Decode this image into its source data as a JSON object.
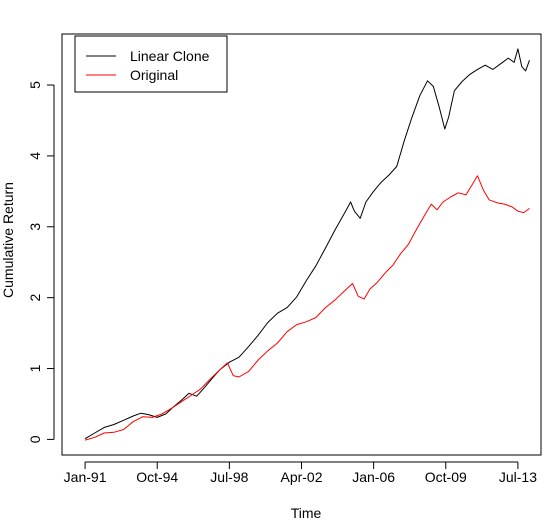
{
  "chart_data": {
    "type": "line",
    "title": "",
    "xlabel": "Time",
    "ylabel": "Cumulative Return",
    "x_ticks": [
      {
        "label": "Jan-91",
        "t": 1991.0
      },
      {
        "label": "Oct-94",
        "t": 1994.75
      },
      {
        "label": "Jul-98",
        "t": 1998.5
      },
      {
        "label": "Apr-02",
        "t": 2002.25
      },
      {
        "label": "Jan-06",
        "t": 2006.0
      },
      {
        "label": "Oct-09",
        "t": 2009.75
      },
      {
        "label": "Jul-13",
        "t": 2013.5
      }
    ],
    "y_ticks": [
      "0",
      "1",
      "2",
      "3",
      "4",
      "5"
    ],
    "xlim": [
      1989.8,
      2014.7
    ],
    "ylim": [
      -0.22,
      5.72
    ],
    "grid": false,
    "legend": "top-left",
    "series": [
      {
        "name": "Linear Clone",
        "color": "#000000",
        "points": [
          [
            1991.0,
            0.01
          ],
          [
            1991.5,
            0.09
          ],
          [
            1992.0,
            0.17
          ],
          [
            1992.5,
            0.21
          ],
          [
            1993.0,
            0.27
          ],
          [
            1993.5,
            0.33
          ],
          [
            1993.9,
            0.37
          ],
          [
            1994.3,
            0.35
          ],
          [
            1994.75,
            0.31
          ],
          [
            1995.2,
            0.36
          ],
          [
            1995.6,
            0.46
          ],
          [
            1996.0,
            0.55
          ],
          [
            1996.4,
            0.65
          ],
          [
            1996.8,
            0.61
          ],
          [
            1997.2,
            0.73
          ],
          [
            1997.6,
            0.86
          ],
          [
            1998.0,
            0.98
          ],
          [
            1998.5,
            1.09
          ],
          [
            1999.0,
            1.16
          ],
          [
            1999.5,
            1.31
          ],
          [
            2000.0,
            1.47
          ],
          [
            2000.5,
            1.65
          ],
          [
            2001.0,
            1.78
          ],
          [
            2001.5,
            1.86
          ],
          [
            2002.0,
            2.01
          ],
          [
            2002.5,
            2.24
          ],
          [
            2003.0,
            2.45
          ],
          [
            2003.5,
            2.7
          ],
          [
            2004.0,
            2.96
          ],
          [
            2004.5,
            3.2
          ],
          [
            2004.8,
            3.35
          ],
          [
            2005.0,
            3.22
          ],
          [
            2005.3,
            3.12
          ],
          [
            2005.6,
            3.35
          ],
          [
            2006.0,
            3.5
          ],
          [
            2006.4,
            3.63
          ],
          [
            2006.8,
            3.73
          ],
          [
            2007.2,
            3.85
          ],
          [
            2007.6,
            4.22
          ],
          [
            2008.0,
            4.55
          ],
          [
            2008.4,
            4.85
          ],
          [
            2008.8,
            5.06
          ],
          [
            2009.1,
            4.98
          ],
          [
            2009.4,
            4.7
          ],
          [
            2009.7,
            4.38
          ],
          [
            2009.9,
            4.55
          ],
          [
            2010.2,
            4.92
          ],
          [
            2010.6,
            5.05
          ],
          [
            2011.0,
            5.15
          ],
          [
            2011.4,
            5.22
          ],
          [
            2011.8,
            5.28
          ],
          [
            2012.2,
            5.22
          ],
          [
            2012.6,
            5.3
          ],
          [
            2013.0,
            5.38
          ],
          [
            2013.3,
            5.32
          ],
          [
            2013.5,
            5.51
          ],
          [
            2013.7,
            5.26
          ],
          [
            2013.9,
            5.2
          ],
          [
            2014.1,
            5.35
          ]
        ]
      },
      {
        "name": "Original",
        "color": "#ff0000",
        "points": [
          [
            1991.0,
            -0.01
          ],
          [
            1991.5,
            0.03
          ],
          [
            1992.0,
            0.09
          ],
          [
            1992.5,
            0.1
          ],
          [
            1993.0,
            0.14
          ],
          [
            1993.5,
            0.25
          ],
          [
            1994.0,
            0.32
          ],
          [
            1994.5,
            0.31
          ],
          [
            1995.0,
            0.36
          ],
          [
            1995.5,
            0.44
          ],
          [
            1996.0,
            0.53
          ],
          [
            1996.5,
            0.62
          ],
          [
            1997.0,
            0.71
          ],
          [
            1997.5,
            0.85
          ],
          [
            1998.0,
            0.98
          ],
          [
            1998.4,
            1.08
          ],
          [
            1998.7,
            0.9
          ],
          [
            1999.0,
            0.88
          ],
          [
            1999.5,
            0.96
          ],
          [
            2000.0,
            1.12
          ],
          [
            2000.5,
            1.25
          ],
          [
            2001.0,
            1.36
          ],
          [
            2001.5,
            1.52
          ],
          [
            2002.0,
            1.62
          ],
          [
            2002.5,
            1.66
          ],
          [
            2003.0,
            1.72
          ],
          [
            2003.5,
            1.86
          ],
          [
            2004.0,
            1.97
          ],
          [
            2004.5,
            2.1
          ],
          [
            2004.9,
            2.2
          ],
          [
            2005.2,
            2.02
          ],
          [
            2005.5,
            1.98
          ],
          [
            2005.8,
            2.12
          ],
          [
            2006.2,
            2.22
          ],
          [
            2006.6,
            2.35
          ],
          [
            2007.0,
            2.46
          ],
          [
            2007.4,
            2.62
          ],
          [
            2007.8,
            2.75
          ],
          [
            2008.2,
            2.95
          ],
          [
            2008.6,
            3.14
          ],
          [
            2009.0,
            3.32
          ],
          [
            2009.3,
            3.24
          ],
          [
            2009.6,
            3.35
          ],
          [
            2010.0,
            3.42
          ],
          [
            2010.4,
            3.48
          ],
          [
            2010.8,
            3.45
          ],
          [
            2011.2,
            3.63
          ],
          [
            2011.4,
            3.72
          ],
          [
            2011.7,
            3.52
          ],
          [
            2012.0,
            3.38
          ],
          [
            2012.4,
            3.34
          ],
          [
            2012.8,
            3.32
          ],
          [
            2013.2,
            3.28
          ],
          [
            2013.5,
            3.22
          ],
          [
            2013.8,
            3.2
          ],
          [
            2014.1,
            3.26
          ]
        ]
      }
    ]
  }
}
